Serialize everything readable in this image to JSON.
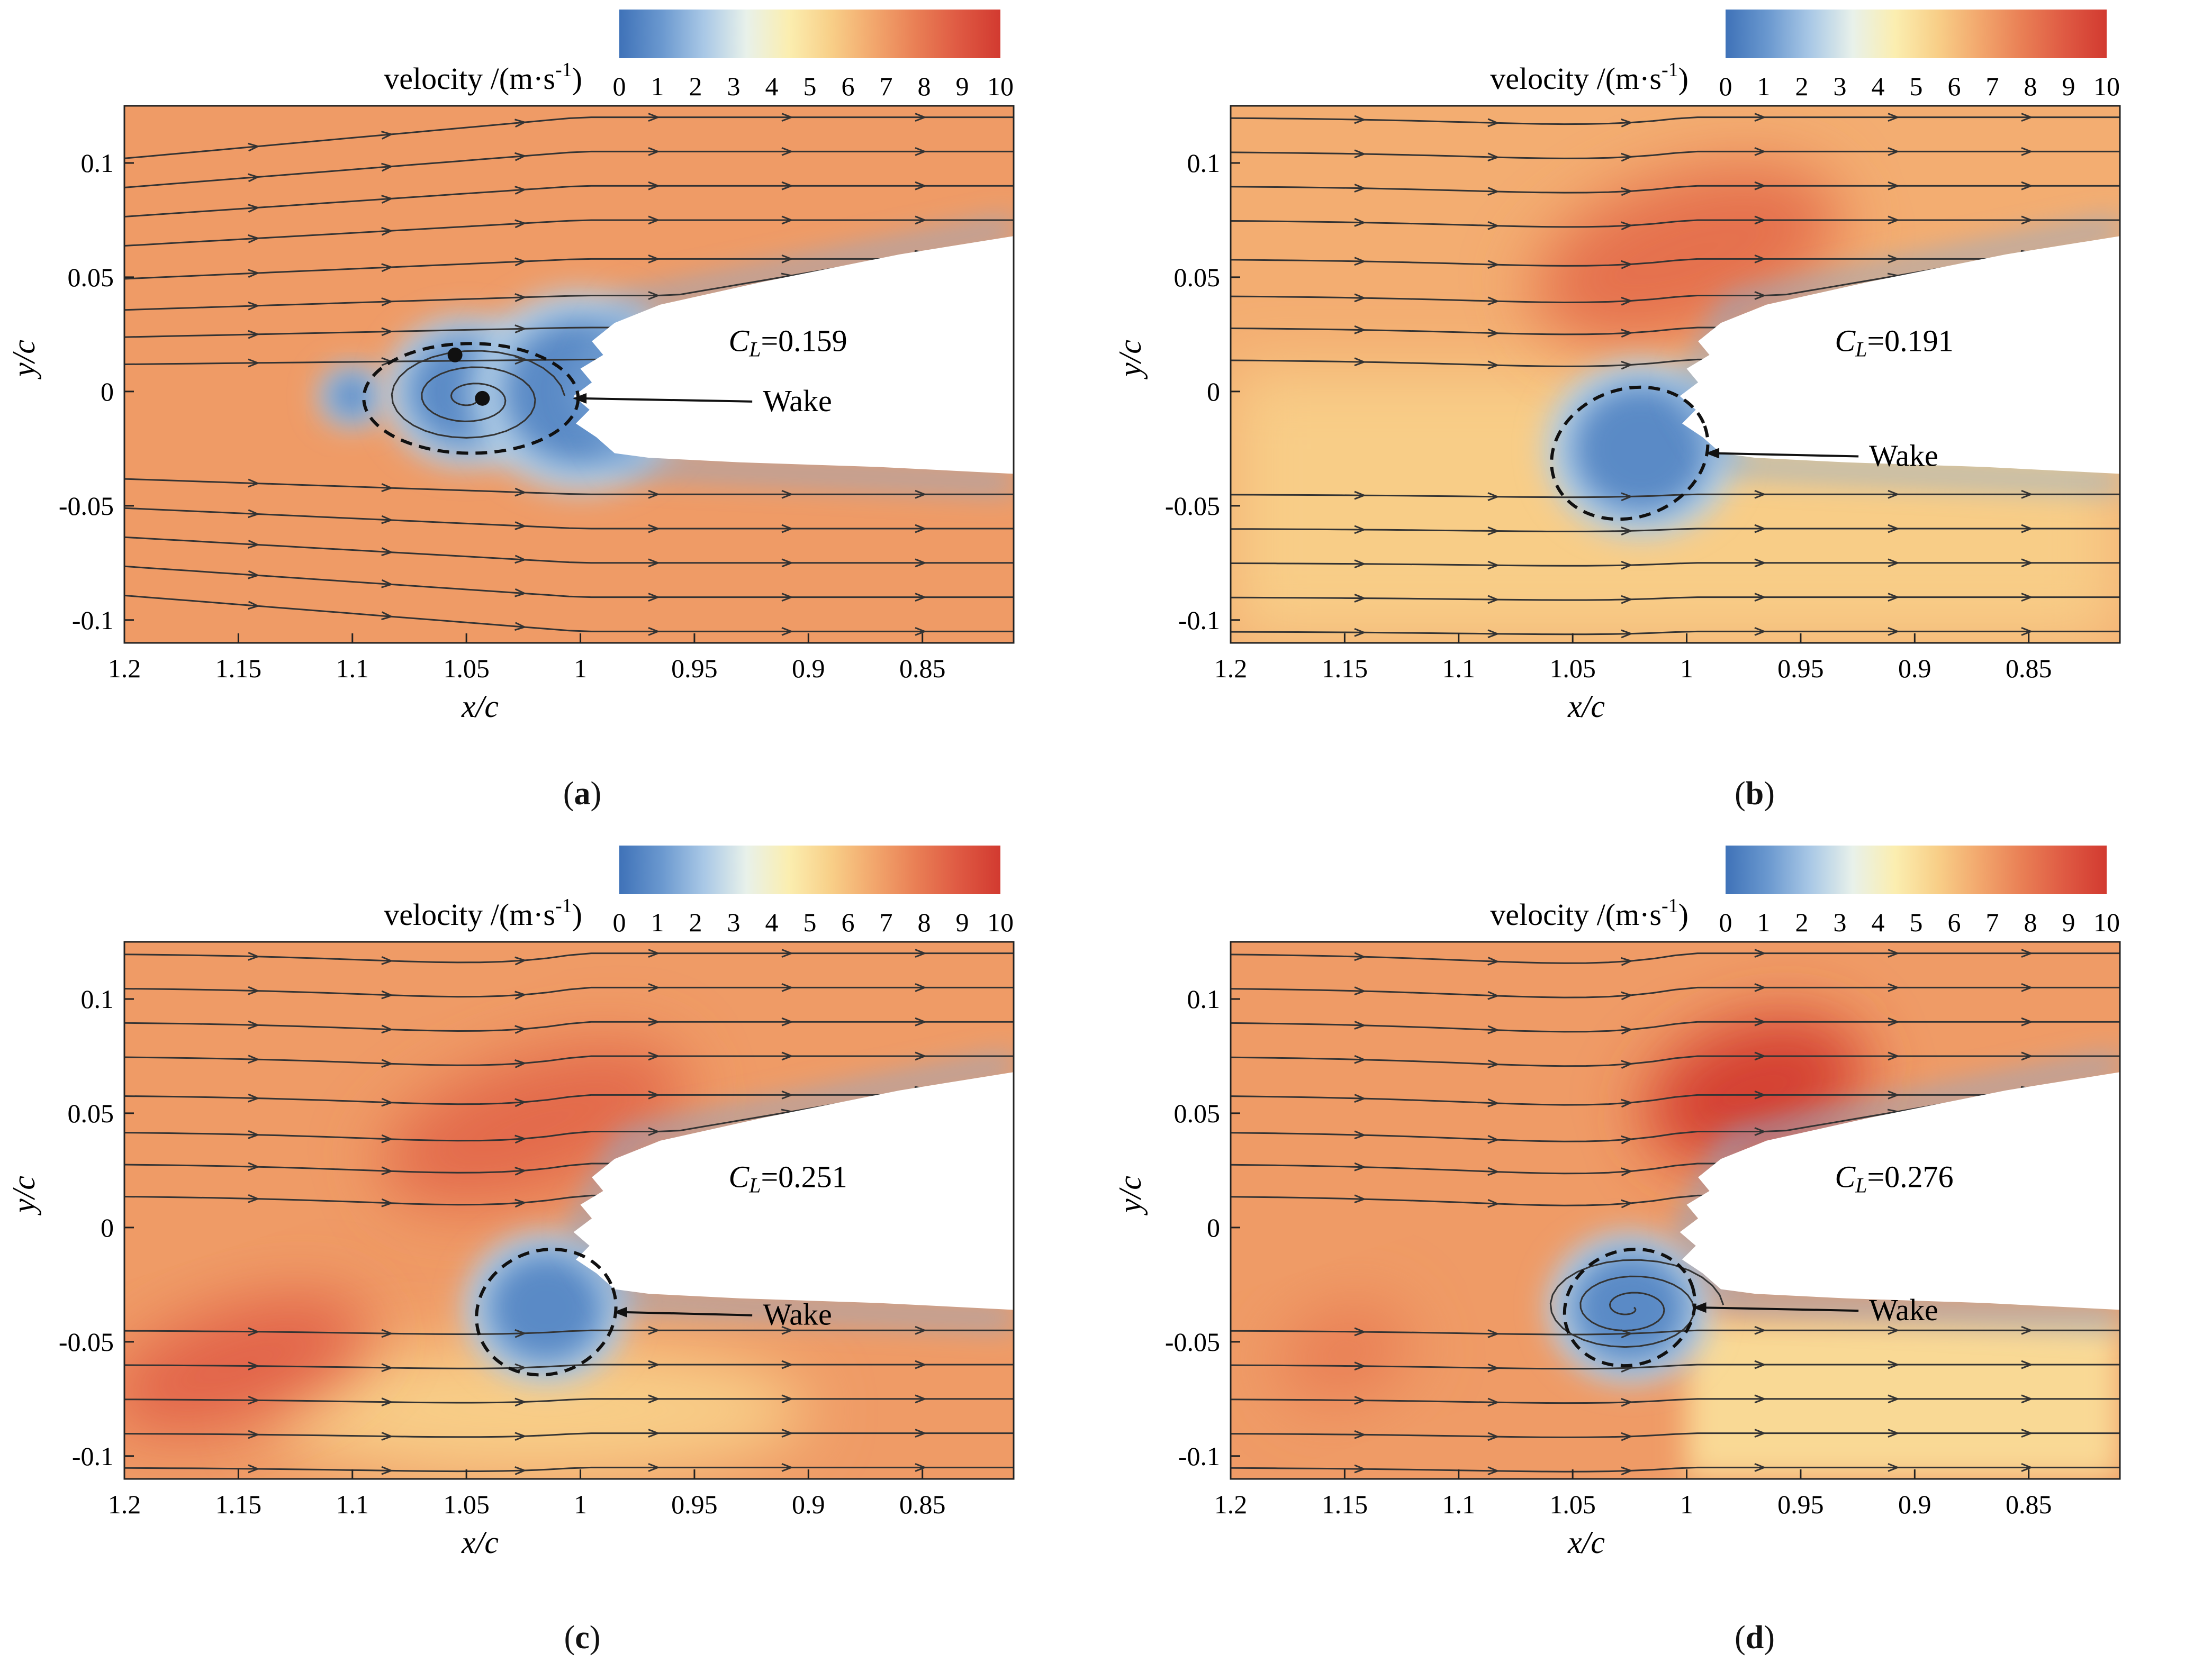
{
  "colorbar": {
    "label": "velocity /(m·s",
    "label_sup": "-1",
    "label_close": ")",
    "ticks": [
      "0",
      "1",
      "2",
      "3",
      "4",
      "5",
      "6",
      "7",
      "8",
      "9",
      "10"
    ],
    "range": [
      0,
      10
    ],
    "colors": [
      "#3f72b8",
      "#6a98cf",
      "#a9c8e6",
      "#e8f1ea",
      "#fbeeb0",
      "#f8cf88",
      "#f2a76d",
      "#e97f55",
      "#df5a43",
      "#d23a30"
    ]
  },
  "axes": {
    "xlabel": "x/c",
    "ylabel": "y/c",
    "xlim": [
      1.2,
      0.81
    ],
    "ylim": [
      -0.11,
      0.125
    ],
    "xticks": [
      "1.2",
      "1.15",
      "1.1",
      "1.05",
      "1",
      "0.95",
      "0.9",
      "0.85"
    ],
    "yticks": [
      "0.1",
      "0.05",
      "0",
      "-0.05",
      "-0.1"
    ]
  },
  "wake_label": "Wake",
  "chart_data": [
    {
      "type": "heatmap",
      "panel": "a",
      "title": "",
      "cl_prefix": "C",
      "cl_sub": "L",
      "cl_value": "=0.159",
      "xlabel": "x/c",
      "ylabel": "y/c",
      "wake_ellipse_center": [
        1.048,
        -0.003
      ],
      "wake_ellipse_radii": [
        0.047,
        0.024
      ],
      "freestream_velocity": 7,
      "wake_min_velocity": 0
    },
    {
      "type": "heatmap",
      "panel": "b",
      "title": "",
      "cl_prefix": "C",
      "cl_sub": "L",
      "cl_value": "=0.191",
      "xlabel": "x/c",
      "ylabel": "y/c",
      "wake_ellipse_center": [
        1.025,
        -0.027
      ],
      "wake_ellipse_radii": [
        0.035,
        0.028
      ],
      "freestream_velocity": 6.5,
      "peak_velocity": 8
    },
    {
      "type": "heatmap",
      "panel": "c",
      "title": "",
      "cl_prefix": "C",
      "cl_sub": "L",
      "cl_value": "=0.251",
      "xlabel": "x/c",
      "ylabel": "y/c",
      "wake_ellipse_center": [
        1.015,
        -0.037
      ],
      "wake_ellipse_radii": [
        0.031,
        0.027
      ],
      "freestream_velocity": 7,
      "peak_velocity": 8.5
    },
    {
      "type": "heatmap",
      "panel": "d",
      "title": "",
      "cl_prefix": "C",
      "cl_sub": "L",
      "cl_value": "=0.276",
      "xlabel": "x/c",
      "ylabel": "y/c",
      "wake_ellipse_center": [
        1.025,
        -0.035
      ],
      "wake_ellipse_radii": [
        0.029,
        0.025
      ],
      "freestream_velocity": 7,
      "peak_velocity": 9.5
    }
  ]
}
